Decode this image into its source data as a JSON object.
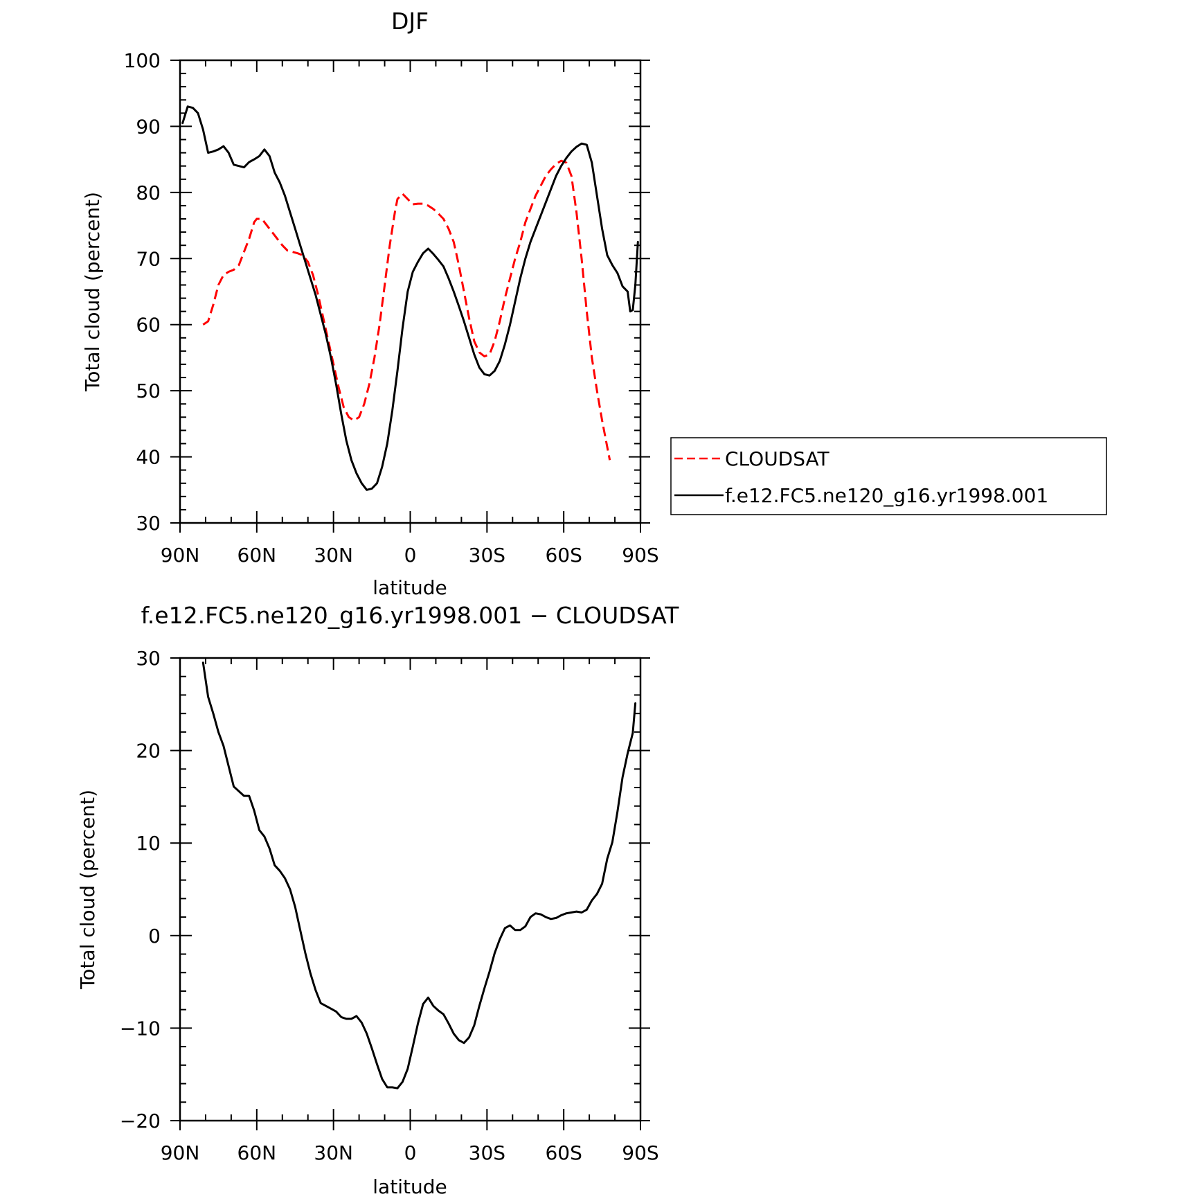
{
  "chart_data": [
    {
      "type": "line",
      "title": "DJF",
      "xlabel": "latitude",
      "ylabel": "Total cloud (percent)",
      "xlim": [
        90,
        -90
      ],
      "ylim": [
        30,
        100
      ],
      "x_tick_values": [
        90,
        60,
        30,
        0,
        -30,
        -60,
        -90
      ],
      "x_tick_labels": [
        "90N",
        "60N",
        "30N",
        "0",
        "30S",
        "60S",
        "90S"
      ],
      "y_tick_values": [
        30,
        40,
        50,
        60,
        70,
        80,
        90,
        100
      ],
      "y_tick_labels": [
        "30",
        "40",
        "50",
        "60",
        "70",
        "80",
        "90",
        "100"
      ],
      "legend": {
        "placement": "right",
        "entries": [
          {
            "label": "CLOUDSAT",
            "color": "#ff0000",
            "dash": "dashed"
          },
          {
            "label": "f.e12.FC5.ne120_g16.yr1998.001",
            "color": "#000000",
            "dash": "solid"
          }
        ]
      },
      "series": [
        {
          "name": "CLOUDSAT",
          "color": "#ff0000",
          "dash": "dashed",
          "points": [
            [
              81,
              60
            ],
            [
              79,
              60.5
            ],
            [
              77,
              63
            ],
            [
              75,
              66
            ],
            [
              73,
              67.5
            ],
            [
              71,
              68
            ],
            [
              69,
              68.3
            ],
            [
              67,
              69
            ],
            [
              65,
              71
            ],
            [
              63,
              73
            ],
            [
              61,
              75.5
            ],
            [
              60,
              76
            ],
            [
              58,
              76
            ],
            [
              56,
              75
            ],
            [
              54,
              74
            ],
            [
              52,
              73
            ],
            [
              50,
              72
            ],
            [
              48,
              71.2
            ],
            [
              46,
              71
            ],
            [
              44,
              70.8
            ],
            [
              42,
              70.5
            ],
            [
              40,
              69.5
            ],
            [
              38,
              67.5
            ],
            [
              36,
              64.5
            ],
            [
              34,
              61
            ],
            [
              32,
              57.5
            ],
            [
              30,
              54
            ],
            [
              28,
              50.5
            ],
            [
              26,
              47.5
            ],
            [
              24,
              46
            ],
            [
              22,
              45.5
            ],
            [
              20,
              46
            ],
            [
              18,
              48
            ],
            [
              16,
              51
            ],
            [
              14,
              55
            ],
            [
              12,
              60
            ],
            [
              10,
              66
            ],
            [
              8,
              72
            ],
            [
              6,
              77
            ],
            [
              5,
              79
            ],
            [
              3,
              79.8
            ],
            [
              1,
              79
            ],
            [
              -1,
              78.2
            ],
            [
              -3,
              78.3
            ],
            [
              -5,
              78.3
            ],
            [
              -7,
              78
            ],
            [
              -9,
              77.5
            ],
            [
              -11,
              76.8
            ],
            [
              -13,
              76
            ],
            [
              -15,
              74.5
            ],
            [
              -17,
              72.5
            ],
            [
              -19,
              69
            ],
            [
              -21,
              65
            ],
            [
              -23,
              61
            ],
            [
              -25,
              57.5
            ],
            [
              -27,
              55.8
            ],
            [
              -29,
              55.2
            ],
            [
              -31,
              55.5
            ],
            [
              -33,
              57.5
            ],
            [
              -35,
              60.5
            ],
            [
              -37,
              64
            ],
            [
              -39,
              67
            ],
            [
              -41,
              70
            ],
            [
              -43,
              72.5
            ],
            [
              -45,
              75.5
            ],
            [
              -47,
              77.5
            ],
            [
              -49,
              79.5
            ],
            [
              -51,
              81
            ],
            [
              -53,
              82.5
            ],
            [
              -55,
              83.5
            ],
            [
              -57,
              84.3
            ],
            [
              -59,
              84.8
            ],
            [
              -61,
              84.5
            ],
            [
              -63,
              82.5
            ],
            [
              -65,
              77
            ],
            [
              -67,
              70
            ],
            [
              -69,
              62
            ],
            [
              -71,
              55
            ],
            [
              -73,
              50
            ],
            [
              -75,
              45.5
            ],
            [
              -77,
              41.5
            ],
            [
              -78,
              39.5
            ]
          ]
        },
        {
          "name": "f.e12.FC5.ne120_g16.yr1998.001",
          "color": "#000000",
          "dash": "solid",
          "points": [
            [
              89,
              90.5
            ],
            [
              87,
              93
            ],
            [
              85,
              92.8
            ],
            [
              83,
              92
            ],
            [
              81,
              89.5
            ],
            [
              79,
              86
            ],
            [
              77,
              86.2
            ],
            [
              75,
              86.5
            ],
            [
              73,
              87
            ],
            [
              71,
              86
            ],
            [
              69,
              84.2
            ],
            [
              67,
              84
            ],
            [
              65,
              83.8
            ],
            [
              63,
              84.6
            ],
            [
              61,
              85
            ],
            [
              59,
              85.5
            ],
            [
              57,
              86.5
            ],
            [
              55,
              85.5
            ],
            [
              53,
              83
            ],
            [
              51,
              81.5
            ],
            [
              49,
              79.5
            ],
            [
              47,
              77
            ],
            [
              45,
              74.5
            ],
            [
              43,
              72
            ],
            [
              41,
              69.5
            ],
            [
              39,
              67
            ],
            [
              37,
              64.5
            ],
            [
              35,
              61.5
            ],
            [
              33,
              58.5
            ],
            [
              31,
              55
            ],
            [
              29,
              51
            ],
            [
              27,
              46.5
            ],
            [
              25,
              42.5
            ],
            [
              23,
              39.5
            ],
            [
              21,
              37.5
            ],
            [
              19,
              36
            ],
            [
              17,
              35
            ],
            [
              15,
              35.2
            ],
            [
              13,
              36
            ],
            [
              11,
              38.5
            ],
            [
              9,
              42
            ],
            [
              7,
              47
            ],
            [
              5,
              53
            ],
            [
              3,
              59.5
            ],
            [
              1,
              65
            ],
            [
              -1,
              68
            ],
            [
              -3,
              69.5
            ],
            [
              -5,
              70.8
            ],
            [
              -7,
              71.5
            ],
            [
              -9,
              70.7
            ],
            [
              -11,
              69.8
            ],
            [
              -13,
              68.8
            ],
            [
              -15,
              67
            ],
            [
              -17,
              65
            ],
            [
              -19,
              62.8
            ],
            [
              -21,
              60.5
            ],
            [
              -23,
              58
            ],
            [
              -25,
              55.5
            ],
            [
              -27,
              53.5
            ],
            [
              -29,
              52.5
            ],
            [
              -31,
              52.3
            ],
            [
              -33,
              53
            ],
            [
              -35,
              54.5
            ],
            [
              -37,
              57
            ],
            [
              -39,
              60
            ],
            [
              -41,
              63.5
            ],
            [
              -43,
              67
            ],
            [
              -45,
              70
            ],
            [
              -47,
              72.5
            ],
            [
              -49,
              74.5
            ],
            [
              -51,
              76.5
            ],
            [
              -53,
              78.5
            ],
            [
              -55,
              80.5
            ],
            [
              -57,
              82.5
            ],
            [
              -59,
              84
            ],
            [
              -61,
              85.2
            ],
            [
              -63,
              86.2
            ],
            [
              -65,
              86.9
            ],
            [
              -67,
              87.4
            ],
            [
              -69,
              87.2
            ],
            [
              -71,
              84.5
            ],
            [
              -73,
              79.5
            ],
            [
              -75,
              74.5
            ],
            [
              -77,
              70.5
            ],
            [
              -79,
              69
            ],
            [
              -81,
              67.8
            ],
            [
              -83,
              65.8
            ],
            [
              -85,
              65
            ],
            [
              -86,
              62
            ],
            [
              -87,
              62.2
            ],
            [
              -88,
              66
            ],
            [
              -89,
              72.5
            ]
          ]
        }
      ]
    },
    {
      "type": "line",
      "title": "f.e12.FC5.ne120_g16.yr1998.001 − CLOUDSAT",
      "xlabel": "latitude",
      "ylabel": "Total cloud (percent)",
      "xlim": [
        90,
        -90
      ],
      "ylim": [
        -20,
        30
      ],
      "x_tick_values": [
        90,
        60,
        30,
        0,
        -30,
        -60,
        -90
      ],
      "x_tick_labels": [
        "90N",
        "60N",
        "30N",
        "0",
        "30S",
        "60S",
        "90S"
      ],
      "y_tick_values": [
        -20,
        -10,
        0,
        10,
        20,
        30
      ],
      "y_tick_labels": [
        "−20",
        "−10",
        "0",
        "10",
        "20",
        "30"
      ],
      "series": [
        {
          "color": "#000000",
          "dash": "solid",
          "points": [
            [
              81,
              29.5
            ],
            [
              79,
              25.8
            ],
            [
              77,
              24
            ],
            [
              75,
              22
            ],
            [
              73,
              20.5
            ],
            [
              71,
              18.3
            ],
            [
              69,
              16.1
            ],
            [
              67,
              15.6
            ],
            [
              65,
              15.1
            ],
            [
              63,
              15.1
            ],
            [
              61,
              13.5
            ],
            [
              59,
              11.4
            ],
            [
              57,
              10.7
            ],
            [
              55,
              9.4
            ],
            [
              53,
              7.6
            ],
            [
              51,
              7
            ],
            [
              49,
              6.2
            ],
            [
              47,
              5
            ],
            [
              45,
              3.1
            ],
            [
              43,
              0.6
            ],
            [
              41,
              -1.9
            ],
            [
              39,
              -4.1
            ],
            [
              37,
              -5.9
            ],
            [
              35,
              -7.3
            ],
            [
              33,
              -7.6
            ],
            [
              31,
              -7.9
            ],
            [
              29,
              -8.2
            ],
            [
              27,
              -8.8
            ],
            [
              25,
              -9
            ],
            [
              23,
              -9
            ],
            [
              21,
              -8.7
            ],
            [
              19,
              -9.4
            ],
            [
              17,
              -10.6
            ],
            [
              15,
              -12.2
            ],
            [
              13,
              -13.9
            ],
            [
              11,
              -15.5
            ],
            [
              9,
              -16.4
            ],
            [
              7,
              -16.4
            ],
            [
              5,
              -16.5
            ],
            [
              3,
              -15.8
            ],
            [
              1,
              -14.4
            ],
            [
              -1,
              -12
            ],
            [
              -3,
              -9.5
            ],
            [
              -5,
              -7.4
            ],
            [
              -7,
              -6.7
            ],
            [
              -9,
              -7.6
            ],
            [
              -11,
              -8.1
            ],
            [
              -13,
              -8.5
            ],
            [
              -15,
              -9.5
            ],
            [
              -17,
              -10.6
            ],
            [
              -19,
              -11.3
            ],
            [
              -21,
              -11.6
            ],
            [
              -23,
              -11
            ],
            [
              -25,
              -9.7
            ],
            [
              -27,
              -7.6
            ],
            [
              -29,
              -5.7
            ],
            [
              -31,
              -3.9
            ],
            [
              -33,
              -1.9
            ],
            [
              -35,
              -0.4
            ],
            [
              -37,
              0.8
            ],
            [
              -39,
              1.1
            ],
            [
              -41,
              0.6
            ],
            [
              -43,
              0.6
            ],
            [
              -45,
              1
            ],
            [
              -47,
              2
            ],
            [
              -49,
              2.4
            ],
            [
              -51,
              2.3
            ],
            [
              -53,
              2
            ],
            [
              -55,
              1.8
            ],
            [
              -57,
              1.9
            ],
            [
              -59,
              2.2
            ],
            [
              -61,
              2.4
            ],
            [
              -63,
              2.5
            ],
            [
              -65,
              2.6
            ],
            [
              -67,
              2.5
            ],
            [
              -69,
              2.8
            ],
            [
              -71,
              3.8
            ],
            [
              -73,
              4.5
            ],
            [
              -75,
              5.6
            ],
            [
              -77,
              8.3
            ],
            [
              -79,
              10.1
            ],
            [
              -81,
              13.4
            ],
            [
              -83,
              17.1
            ],
            [
              -85,
              19.7
            ],
            [
              -87,
              21.9
            ],
            [
              -88,
              25.1
            ]
          ]
        }
      ]
    }
  ]
}
